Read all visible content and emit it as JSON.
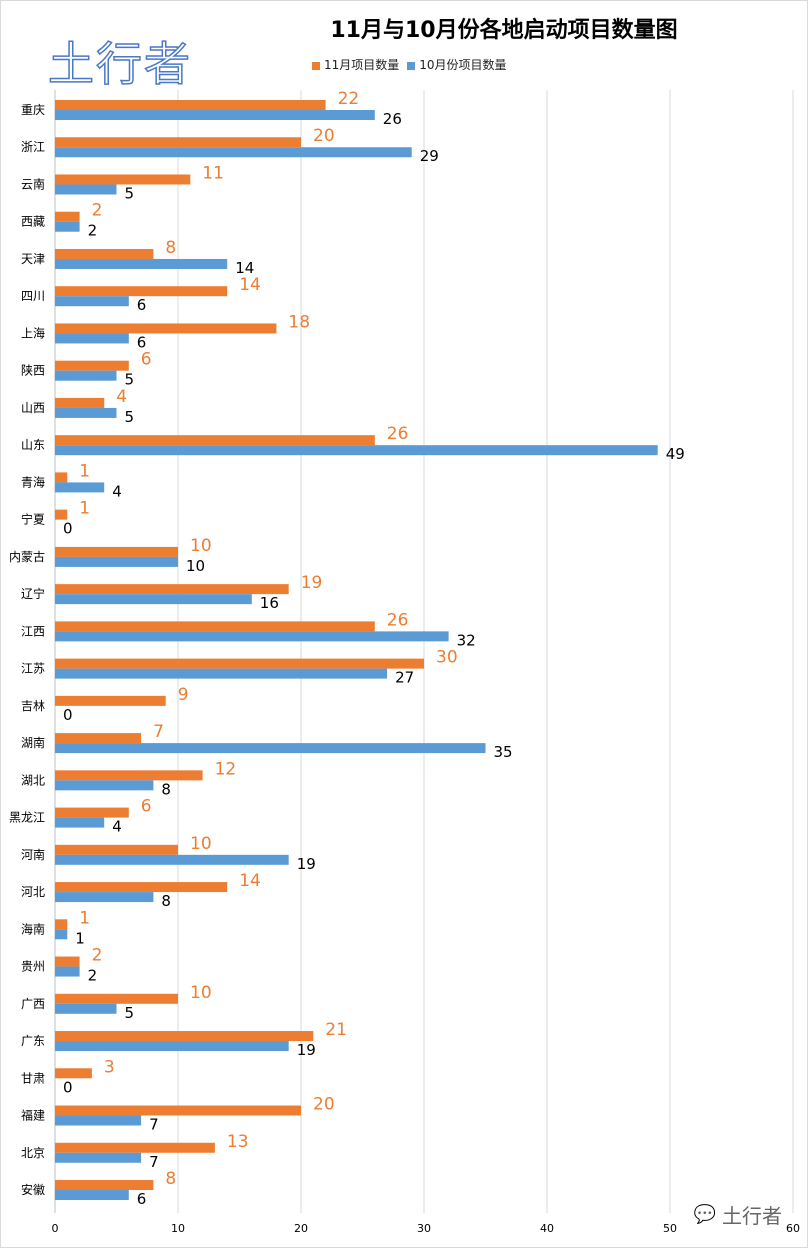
{
  "logo_text": "土行者",
  "watermark_text": "土行者",
  "chart_data": {
    "type": "bar",
    "orientation": "horizontal",
    "title": "11月与10月份各地启动项目数量图",
    "xlabel": "",
    "ylabel": "",
    "xlim": [
      0,
      60
    ],
    "xticks": [
      0,
      10,
      20,
      30,
      40,
      50,
      60
    ],
    "grid": true,
    "legend_position": "top",
    "categories": [
      "重庆",
      "浙江",
      "云南",
      "西藏",
      "天津",
      "四川",
      "上海",
      "陕西",
      "山西",
      "山东",
      "青海",
      "宁夏",
      "内蒙古",
      "辽宁",
      "江西",
      "江苏",
      "吉林",
      "湖南",
      "湖北",
      "黑龙江",
      "河南",
      "河北",
      "海南",
      "贵州",
      "广西",
      "广东",
      "甘肃",
      "福建",
      "北京",
      "安徽"
    ],
    "series": [
      {
        "name": "11月项目数量",
        "color": "#ed7d31",
        "label_color": "#ed7d31",
        "values": [
          22,
          20,
          11,
          2,
          8,
          14,
          18,
          6,
          4,
          26,
          1,
          1,
          10,
          19,
          26,
          30,
          9,
          7,
          12,
          6,
          10,
          14,
          1,
          2,
          10,
          21,
          3,
          20,
          13,
          8
        ]
      },
      {
        "name": "10月份项目数量",
        "color": "#5b9bd5",
        "label_color": "#000000",
        "values": [
          26,
          29,
          5,
          2,
          14,
          6,
          6,
          5,
          5,
          49,
          4,
          0,
          10,
          16,
          32,
          27,
          0,
          35,
          8,
          4,
          19,
          8,
          1,
          2,
          5,
          19,
          0,
          7,
          7,
          6
        ]
      }
    ]
  }
}
